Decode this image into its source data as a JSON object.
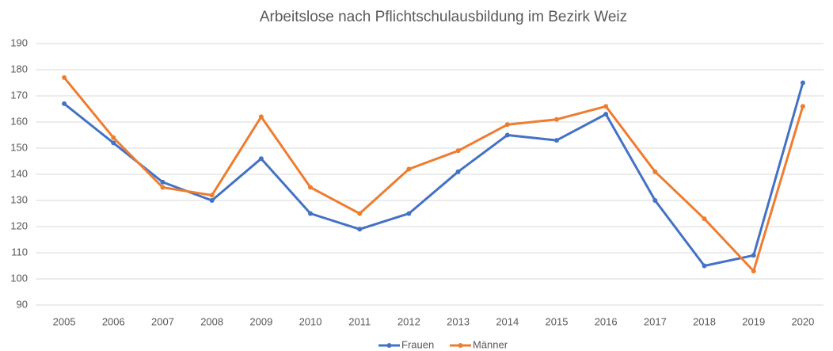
{
  "chart_data": {
    "type": "line",
    "title": "Arbeitslose nach Pflichtschulausbildung im Bezirk Weiz",
    "categories": [
      "2005",
      "2006",
      "2007",
      "2008",
      "2009",
      "2010",
      "2011",
      "2012",
      "2013",
      "2014",
      "2015",
      "2016",
      "2017",
      "2018",
      "2019",
      "2020"
    ],
    "series": [
      {
        "name": "Frauen",
        "color": "#4472c4",
        "values": [
          167,
          152,
          137,
          130,
          146,
          125,
          119,
          125,
          141,
          155,
          153,
          163,
          130,
          105,
          109,
          175
        ]
      },
      {
        "name": "Männer",
        "color": "#ed7d31",
        "values": [
          177,
          154,
          135,
          132,
          162,
          135,
          125,
          142,
          149,
          159,
          161,
          166,
          141,
          123,
          103,
          166
        ]
      }
    ],
    "ylim": [
      90,
      190
    ],
    "yticks": [
      90,
      100,
      110,
      120,
      130,
      140,
      150,
      160,
      170,
      180,
      190
    ],
    "grid": true,
    "legend": "bottom"
  }
}
